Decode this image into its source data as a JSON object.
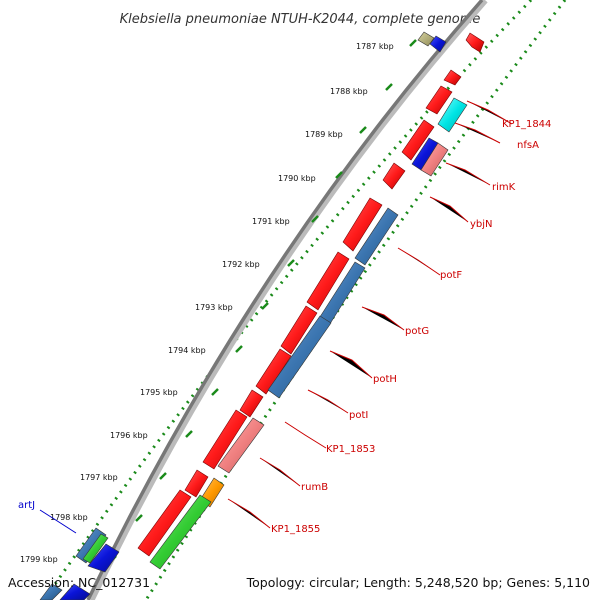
{
  "header": {
    "title": "Klebsiella pneumoniae NTUH-K2044, complete genome"
  },
  "footer": {
    "accession": "Accession: NC_012731",
    "summary": "Topology: circular; Length: 5,248,520 bp; Genes: 5,110"
  },
  "ruler": {
    "ticks": [
      "1787 kbp",
      "1788 kbp",
      "1789 kbp",
      "1790 kbp",
      "1791 kbp",
      "1792 kbp",
      "1793 kbp",
      "1794 kbp",
      "1795 kbp",
      "1796 kbp",
      "1797 kbp",
      "1798 kbp",
      "1799 kbp"
    ]
  },
  "genes": {
    "right": [
      "KP1_1844",
      "nfsA",
      "rimK",
      "ybjN",
      "potF",
      "potG",
      "potH",
      "potI",
      "KP1_1853",
      "rumB",
      "KP1_1855"
    ],
    "left": [
      "artJ"
    ]
  },
  "colors": {
    "backbone": "#777777",
    "ticks": "#1a7a1a",
    "label_red": "#cc0000",
    "label_blue": "#0000cc",
    "feature_red": "#ff1a1a",
    "feature_blue": "#3b75b0",
    "feature_pink": "#f08080",
    "feature_cyan": "#00e5e5",
    "feature_green": "#33cc33",
    "feature_orange": "#ff9900",
    "feature_navy": "#0a14d8",
    "feature_khaki": "#b5b07a"
  }
}
